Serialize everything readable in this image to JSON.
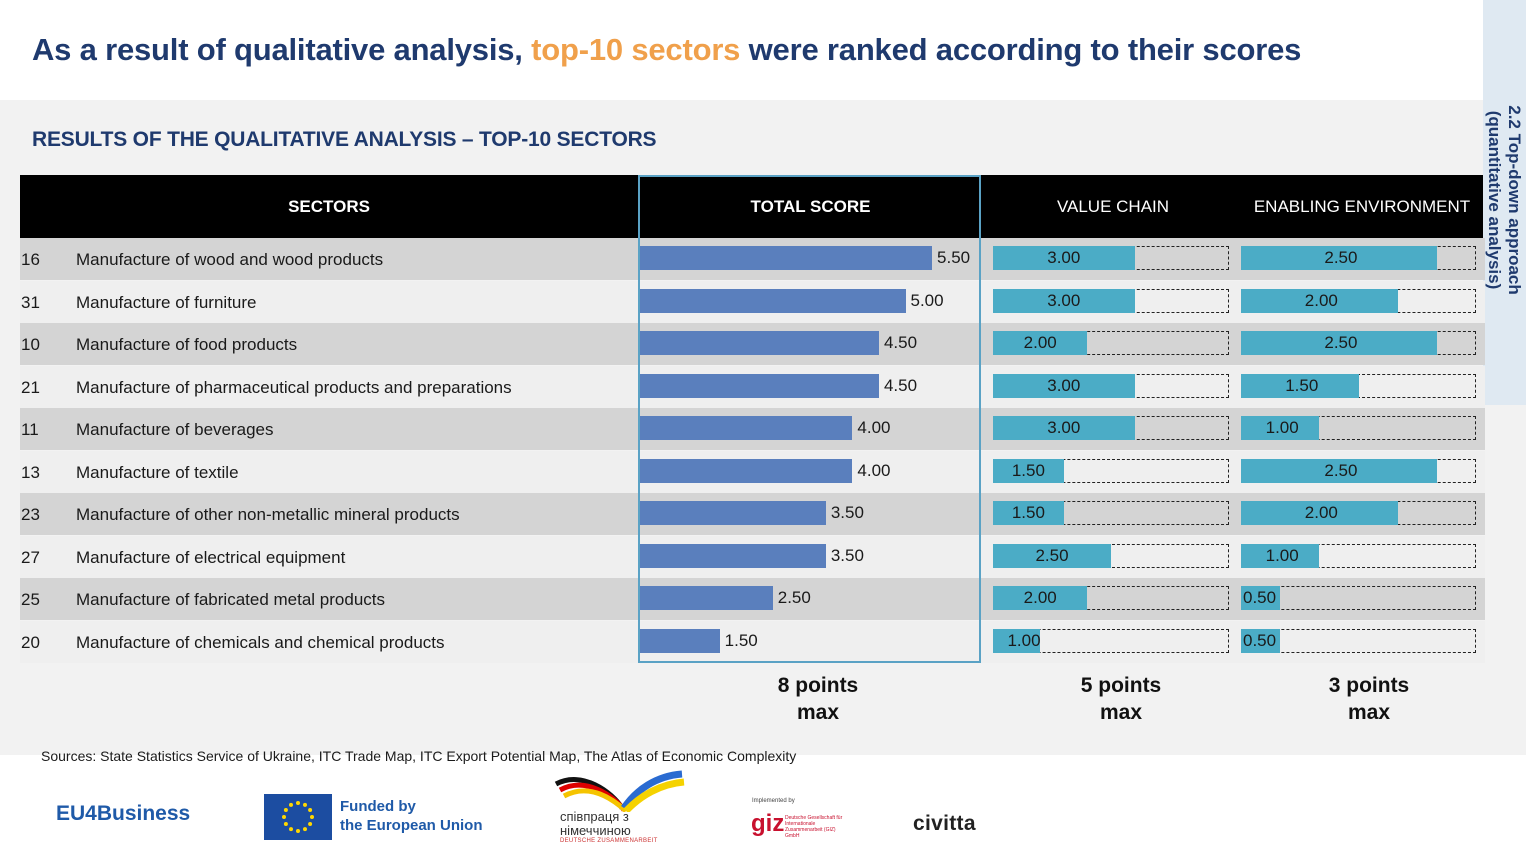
{
  "headline": {
    "part1": "As a result of qualitative analysis, ",
    "accent": "top-10 sectors",
    "part2": " were ranked according to their scores"
  },
  "side_tab": "2.2 Top-down approach (quantitative analysis)",
  "subtitle": "RESULTS OF THE QUALITATIVE ANALYSIS – TOP-10 SECTORS",
  "headers": {
    "sectors": "SECTORS",
    "total": "TOTAL SCORE",
    "value_chain": "VALUE CHAIN",
    "enabling": "ENABLING ENVIRONMENT"
  },
  "max_labels": {
    "total": [
      "8 points",
      "max"
    ],
    "value_chain": [
      "5 points",
      "max"
    ],
    "enabling": [
      "3 points",
      "max"
    ]
  },
  "sources": "Sources: State Statistics Service of Ukraine, ITC Trade Map, ITC Export Potential Map, The Atlas of Economic Complexity",
  "logos": {
    "eu4business": "EU4Business",
    "funded_line1": "Funded by",
    "funded_line2": "the European Union",
    "spivpratsia_line1": "співпраця з",
    "spivpratsia_line2": "німеччиною",
    "spivpratsia_sub": "DEUTSCHE ZUSAMMENARBEIT",
    "giz_small": "Implemented by",
    "giz": "giz",
    "giz_desc": "Deutsche Gesellschaft für Internationale Zusammenarbeit (GIZ) GmbH",
    "civitta": "civitta"
  },
  "colors": {
    "title_blue": "#1f3a6e",
    "accent_orange": "#f0a04b",
    "total_bar": "#5a7fbd",
    "sub_bar": "#4bacc6",
    "box_border": "#5aa2c5"
  },
  "chart_data": {
    "type": "table",
    "columns": [
      "SECTORS",
      "TOTAL SCORE",
      "VALUE CHAIN",
      "ENABLING ENVIRONMENT"
    ],
    "maxima": {
      "total": 8,
      "value_chain": 5,
      "enabling": 3
    },
    "rows": [
      {
        "code": "16",
        "sector": "Manufacture of wood and wood products",
        "total": 5.5,
        "value_chain": 3.0,
        "enabling": 2.5
      },
      {
        "code": "31",
        "sector": "Manufacture of furniture",
        "total": 5.0,
        "value_chain": 3.0,
        "enabling": 2.0
      },
      {
        "code": "10",
        "sector": "Manufacture of food products",
        "total": 4.5,
        "value_chain": 2.0,
        "enabling": 2.5
      },
      {
        "code": "21",
        "sector": "Manufacture of pharmaceutical products and preparations",
        "total": 4.5,
        "value_chain": 3.0,
        "enabling": 1.5
      },
      {
        "code": "11",
        "sector": "Manufacture of beverages",
        "total": 4.0,
        "value_chain": 3.0,
        "enabling": 1.0
      },
      {
        "code": "13",
        "sector": "Manufacture of textile",
        "total": 4.0,
        "value_chain": 1.5,
        "enabling": 2.5
      },
      {
        "code": "23",
        "sector": "Manufacture of other non-metallic mineral products",
        "total": 3.5,
        "value_chain": 1.5,
        "enabling": 2.0
      },
      {
        "code": "27",
        "sector": "Manufacture of electrical equipment",
        "total": 3.5,
        "value_chain": 2.5,
        "enabling": 1.0
      },
      {
        "code": "25",
        "sector": "Manufacture of fabricated metal products",
        "total": 2.5,
        "value_chain": 2.0,
        "enabling": 0.5
      },
      {
        "code": "20",
        "sector": "Manufacture of chemicals and chemical products",
        "total": 1.5,
        "value_chain": 1.0,
        "enabling": 0.5
      }
    ]
  }
}
